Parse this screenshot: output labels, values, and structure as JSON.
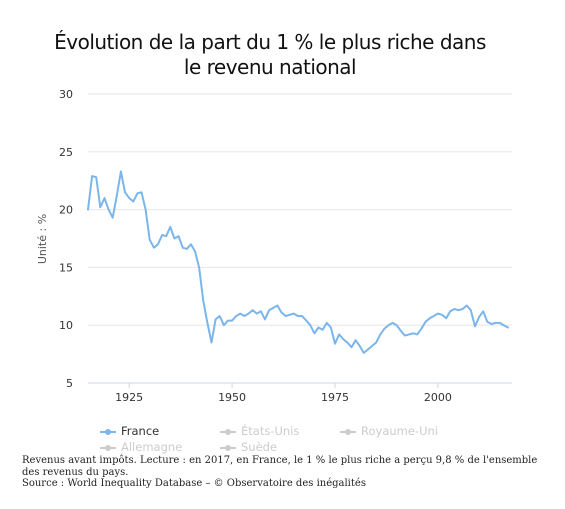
{
  "chart_data": {
    "type": "line",
    "title_line1": "Évolution de la part du 1 % le plus riche dans",
    "title_line2": "le revenu national",
    "xlabel": "",
    "ylabel": "Unité : %",
    "xlim": [
      1915,
      2018
    ],
    "ylim": [
      5,
      30
    ],
    "x_ticks": [
      1925,
      1950,
      1975,
      2000
    ],
    "y_ticks": [
      5,
      10,
      15,
      20,
      25,
      30
    ],
    "grid": "horizontal",
    "legend_position": "bottom",
    "series": [
      {
        "name": "France",
        "color": "#7cb5ec",
        "visible": true,
        "x": [
          1915,
          1916,
          1917,
          1918,
          1919,
          1920,
          1921,
          1922,
          1923,
          1924,
          1925,
          1926,
          1927,
          1928,
          1929,
          1930,
          1931,
          1932,
          1933,
          1934,
          1935,
          1936,
          1937,
          1938,
          1939,
          1940,
          1941,
          1942,
          1943,
          1944,
          1945,
          1946,
          1947,
          1948,
          1949,
          1950,
          1951,
          1952,
          1953,
          1954,
          1955,
          1956,
          1957,
          1958,
          1959,
          1960,
          1961,
          1962,
          1963,
          1964,
          1965,
          1966,
          1967,
          1968,
          1969,
          1970,
          1971,
          1972,
          1973,
          1974,
          1975,
          1976,
          1977,
          1978,
          1979,
          1980,
          1981,
          1982,
          1983,
          1984,
          1985,
          1986,
          1987,
          1988,
          1989,
          1990,
          1991,
          1992,
          1993,
          1994,
          1995,
          1996,
          1997,
          1998,
          1999,
          2000,
          2001,
          2002,
          2003,
          2004,
          2005,
          2006,
          2007,
          2008,
          2009,
          2010,
          2011,
          2012,
          2013,
          2014,
          2015,
          2016,
          2017
        ],
        "values": [
          20.0,
          22.9,
          22.8,
          20.2,
          21.0,
          20.0,
          19.3,
          21.2,
          23.3,
          21.5,
          21.0,
          20.7,
          21.4,
          21.5,
          20.0,
          17.4,
          16.7,
          17.0,
          17.8,
          17.7,
          18.5,
          17.5,
          17.7,
          16.7,
          16.6,
          17.0,
          16.4,
          15.0,
          12.1,
          10.2,
          8.5,
          10.5,
          10.8,
          10.0,
          10.4,
          10.4,
          10.8,
          11.0,
          10.8,
          11.0,
          11.3,
          11.0,
          11.2,
          10.5,
          11.3,
          11.5,
          11.7,
          11.1,
          10.8,
          10.9,
          11.0,
          10.8,
          10.8,
          10.4,
          10.0,
          9.3,
          9.8,
          9.6,
          10.2,
          9.8,
          8.4,
          9.2,
          8.8,
          8.5,
          8.1,
          8.7,
          8.2,
          7.6,
          7.9,
          8.2,
          8.5,
          9.2,
          9.7,
          10.0,
          10.2,
          10.0,
          9.5,
          9.1,
          9.2,
          9.3,
          9.2,
          9.7,
          10.3,
          10.6,
          10.8,
          11.0,
          10.9,
          10.6,
          11.2,
          11.4,
          11.3,
          11.4,
          11.7,
          11.3,
          9.9,
          10.7,
          11.2,
          10.3,
          10.1,
          10.2,
          10.2,
          10.0,
          9.8
        ]
      },
      {
        "name": "États-Unis",
        "color": "#cccccc",
        "visible": false
      },
      {
        "name": "Royaume-Uni",
        "color": "#cccccc",
        "visible": false
      },
      {
        "name": "Allemagne",
        "color": "#cccccc",
        "visible": false
      },
      {
        "name": "Suède",
        "color": "#cccccc",
        "visible": false
      }
    ]
  },
  "footer": {
    "line1": "Revenus avant impôts. Lecture : en 2017, en France, le 1 % le plus riche a perçu 9,8 % de l'ensemble des revenus du pays.",
    "line2": "Source : World Inequality Database – © Observatoire des inégalités"
  }
}
